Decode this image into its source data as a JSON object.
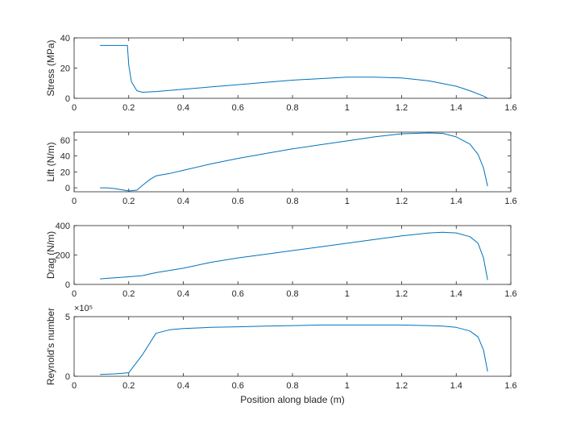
{
  "chart_data": [
    {
      "type": "line",
      "ylabel": "Stress (MPa)",
      "xlabel": "",
      "xlim": [
        0,
        1.6
      ],
      "ylim": [
        0,
        40
      ],
      "xticks": [
        "0",
        "0.2",
        "0.4",
        "0.6",
        "0.8",
        "1",
        "1.2",
        "1.4",
        "1.6"
      ],
      "yticks": [
        "0",
        "20",
        "40"
      ],
      "exponent_label": "",
      "grid": false,
      "series": [
        {
          "color": "#0072BD",
          "x": [
            0.095,
            0.195,
            0.2,
            0.21,
            0.23,
            0.25,
            0.3,
            0.4,
            0.5,
            0.6,
            0.7,
            0.8,
            0.9,
            1.0,
            1.1,
            1.2,
            1.3,
            1.4,
            1.45,
            1.5,
            1.515
          ],
          "y": [
            35,
            35,
            22,
            11,
            5,
            4,
            4.5,
            6,
            7.5,
            9,
            10.5,
            12,
            13,
            14,
            14,
            13.5,
            11.5,
            8,
            5,
            1.5,
            0
          ]
        }
      ]
    },
    {
      "type": "line",
      "ylabel": "Lift (N/m)",
      "xlabel": "",
      "xlim": [
        0,
        1.6
      ],
      "ylim": [
        -5,
        70
      ],
      "xticks": [
        "0",
        "0.2",
        "0.4",
        "0.6",
        "0.8",
        "1",
        "1.2",
        "1.4",
        "1.6"
      ],
      "yticks": [
        "0",
        "20",
        "40",
        "60"
      ],
      "exponent_label": "",
      "grid": false,
      "series": [
        {
          "color": "#0072BD",
          "x": [
            0.095,
            0.12,
            0.15,
            0.2,
            0.23,
            0.25,
            0.28,
            0.3,
            0.35,
            0.4,
            0.5,
            0.6,
            0.7,
            0.8,
            0.9,
            1.0,
            1.1,
            1.2,
            1.3,
            1.35,
            1.4,
            1.45,
            1.48,
            1.5,
            1.515
          ],
          "y": [
            0,
            0,
            -1,
            -4,
            -3,
            3,
            11,
            15,
            18,
            22,
            30,
            37,
            43,
            49,
            54,
            59,
            64,
            68,
            69,
            68.5,
            64,
            55,
            42,
            25,
            2
          ]
        }
      ]
    },
    {
      "type": "line",
      "ylabel": "Drag (N/m)",
      "xlabel": "",
      "xlim": [
        0,
        1.6
      ],
      "ylim": [
        0,
        400
      ],
      "xticks": [
        "0",
        "0.2",
        "0.4",
        "0.6",
        "0.8",
        "1",
        "1.2",
        "1.4",
        "1.6"
      ],
      "yticks": [
        "0",
        "200",
        "400"
      ],
      "exponent_label": "",
      "grid": false,
      "series": [
        {
          "color": "#0072BD",
          "x": [
            0.095,
            0.15,
            0.2,
            0.25,
            0.3,
            0.4,
            0.5,
            0.6,
            0.7,
            0.8,
            0.9,
            1.0,
            1.1,
            1.2,
            1.3,
            1.35,
            1.4,
            1.45,
            1.48,
            1.5,
            1.515
          ],
          "y": [
            38,
            45,
            52,
            60,
            80,
            110,
            150,
            180,
            205,
            230,
            255,
            280,
            305,
            330,
            350,
            355,
            350,
            325,
            280,
            180,
            30
          ]
        }
      ]
    },
    {
      "type": "line",
      "ylabel": "Reynold's number",
      "xlabel": "Position along blade (m)",
      "xlim": [
        0,
        1.6
      ],
      "ylim": [
        0,
        5
      ],
      "xticks": [
        "0",
        "0.2",
        "0.4",
        "0.6",
        "0.8",
        "1",
        "1.2",
        "1.4",
        "1.6"
      ],
      "yticks": [
        "0",
        "5"
      ],
      "exponent_label": "×10⁵",
      "grid": false,
      "series": [
        {
          "color": "#0072BD",
          "x": [
            0.095,
            0.15,
            0.2,
            0.25,
            0.3,
            0.35,
            0.4,
            0.5,
            0.6,
            0.7,
            0.8,
            0.9,
            1.0,
            1.1,
            1.2,
            1.3,
            1.35,
            1.4,
            1.45,
            1.48,
            1.5,
            1.515
          ],
          "y": [
            0.15,
            0.2,
            0.3,
            1.8,
            3.6,
            3.9,
            4.0,
            4.1,
            4.15,
            4.2,
            4.25,
            4.3,
            4.3,
            4.3,
            4.3,
            4.25,
            4.2,
            4.1,
            3.8,
            3.3,
            2.2,
            0.4
          ]
        }
      ]
    }
  ]
}
